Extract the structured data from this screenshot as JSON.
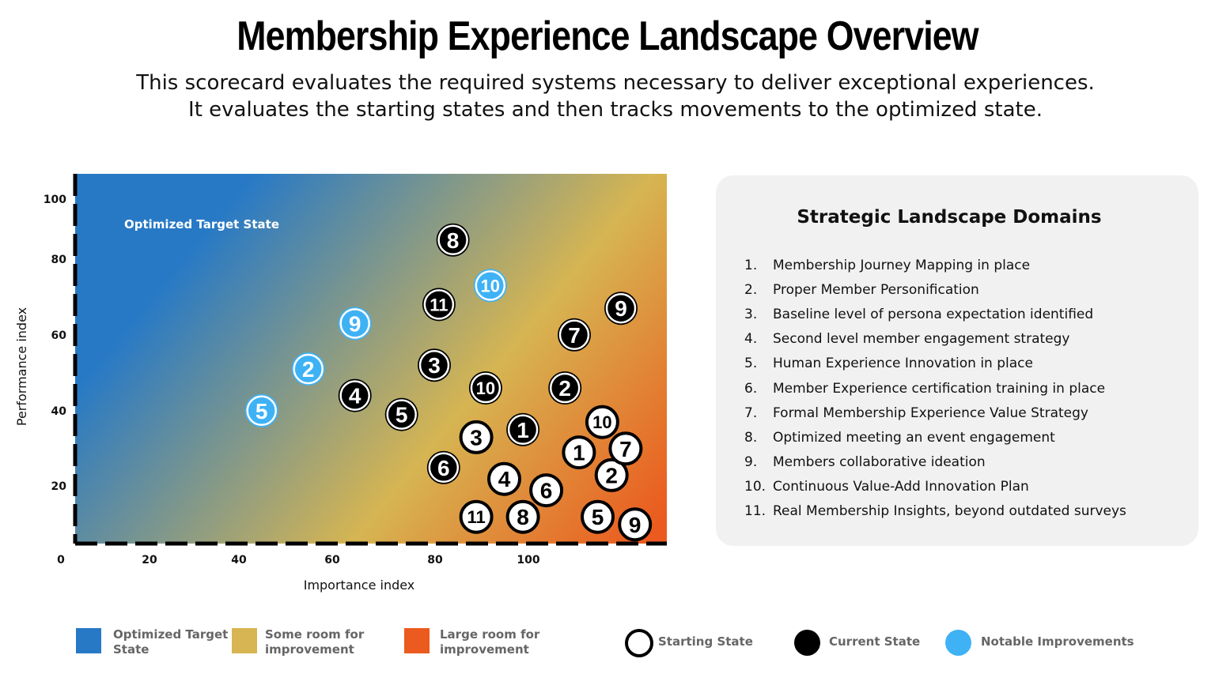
{
  "title": "Membership Experience  Landscape Overview",
  "subtitle_lines": [
    "This scorecard evaluates the required systems necessary to deliver exceptional experiences.",
    "It evaluates the starting states and then tracks movements to the optimized state."
  ],
  "chart_data": {
    "type": "scatter",
    "xlabel": "Importance index",
    "ylabel": "Performance index",
    "x_ticks": [
      "0",
      "20",
      "40",
      "60",
      "80",
      "100"
    ],
    "y_ticks": [
      "100",
      "80",
      "60",
      "40",
      "20"
    ],
    "xlim": [
      0,
      130
    ],
    "ylim": [
      5,
      105
    ],
    "region_label": "Optimized Target State",
    "background_gradient": [
      "#2779c6",
      "#d6b552",
      "#eb5a1e"
    ],
    "series": [
      {
        "name": "Starting State",
        "style": "white-fill-black-ring",
        "points": [
          {
            "label": "1",
            "x": 111,
            "y": 33
          },
          {
            "label": "2",
            "x": 118,
            "y": 27
          },
          {
            "label": "3",
            "x": 89,
            "y": 37
          },
          {
            "label": "4",
            "x": 95,
            "y": 26
          },
          {
            "label": "5",
            "x": 115,
            "y": 16
          },
          {
            "label": "6",
            "x": 104,
            "y": 23
          },
          {
            "label": "7",
            "x": 121,
            "y": 34
          },
          {
            "label": "8",
            "x": 99,
            "y": 16
          },
          {
            "label": "9",
            "x": 123,
            "y": 14
          },
          {
            "label": "10",
            "x": 116,
            "y": 41
          },
          {
            "label": "11",
            "x": 89,
            "y": 16
          }
        ]
      },
      {
        "name": "Current State",
        "style": "black-fill-white-ring",
        "points": [
          {
            "label": "1",
            "x": 99,
            "y": 39
          },
          {
            "label": "2",
            "x": 108,
            "y": 50
          },
          {
            "label": "3",
            "x": 80,
            "y": 56
          },
          {
            "label": "4",
            "x": 63,
            "y": 48
          },
          {
            "label": "5",
            "x": 73,
            "y": 43
          },
          {
            "label": "6",
            "x": 82,
            "y": 29
          },
          {
            "label": "7",
            "x": 110,
            "y": 64
          },
          {
            "label": "8",
            "x": 84,
            "y": 89
          },
          {
            "label": "9",
            "x": 120,
            "y": 71
          },
          {
            "label": "10",
            "x": 91,
            "y": 50
          },
          {
            "label": "11",
            "x": 81,
            "y": 72
          }
        ]
      },
      {
        "name": "Notable Improvements",
        "style": "blue-fill-white-ring",
        "points": [
          {
            "label": "2",
            "x": 53,
            "y": 55
          },
          {
            "label": "5",
            "x": 43,
            "y": 44
          },
          {
            "label": "9",
            "x": 63,
            "y": 67
          },
          {
            "label": "10",
            "x": 92,
            "y": 77
          }
        ]
      }
    ]
  },
  "domains_panel": {
    "title": "Strategic Landscape Domains",
    "items": [
      {
        "num": "1.",
        "text": "Membership Journey Mapping in place"
      },
      {
        "num": "2.",
        "text": "Proper Member Personification"
      },
      {
        "num": "3.",
        "text": "Baseline level of persona expectation identified"
      },
      {
        "num": "4.",
        "text": "Second level member engagement strategy"
      },
      {
        "num": "5.",
        "text": "Human Experience Innovation in place"
      },
      {
        "num": "6.",
        "text": "Member Experience certification training in place"
      },
      {
        "num": "7.",
        "text": "Formal Membership Experience Value Strategy"
      },
      {
        "num": "8.",
        "text": "Optimized meeting an event engagement"
      },
      {
        "num": "9.",
        "text": "Members collaborative ideation"
      },
      {
        "num": "10.",
        "text": "Continuous Value-Add Innovation Plan"
      },
      {
        "num": "11.",
        "text": "Real Membership Insights, beyond outdated surveys"
      }
    ]
  },
  "legend": {
    "regions": [
      {
        "line1": "Optimized Target",
        "line2": "State",
        "color": "#2779c6"
      },
      {
        "line1": "Some room for",
        "line2": "improvement",
        "color": "#d6b552"
      },
      {
        "line1": "Large room for",
        "line2": "improvement",
        "color": "#eb5a1e"
      }
    ],
    "markers": [
      {
        "label": "Starting State",
        "fill": "#ffffff",
        "ring": "#000000"
      },
      {
        "label": "Current State",
        "fill": "#000000",
        "ring": "#000000"
      },
      {
        "label": "Notable Improvements",
        "fill": "#3eb2f5",
        "ring": "#3eb2f5"
      }
    ]
  }
}
